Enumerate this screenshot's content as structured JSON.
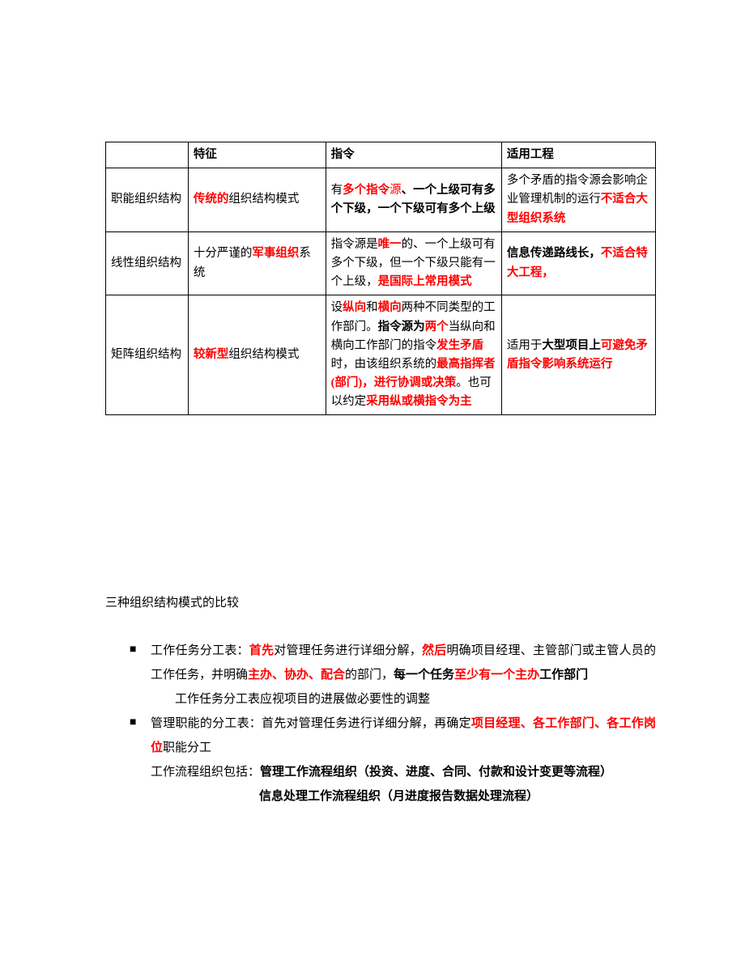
{
  "table": {
    "headers": [
      "",
      "特征",
      "指令",
      "适用工程"
    ],
    "rows": [
      {
        "name": "职能组织结构",
        "feature": [
          {
            "t": "传统的",
            "red": true,
            "bold": true
          },
          {
            "t": "组织结构模式"
          }
        ],
        "directive": [
          {
            "t": "有"
          },
          {
            "t": "多个指令",
            "red": true,
            "bold": true
          },
          {
            "t": "源",
            "red": true,
            "bold": false
          },
          {
            "t": "、一个上级可有多个下级，一个下级可有多个上级",
            "bold": true
          }
        ],
        "application": [
          {
            "t": "多个矛盾的指令源会影响企业管理机制的运行"
          },
          {
            "t": "不适合大型组织系统",
            "red": true,
            "bold": true
          }
        ]
      },
      {
        "name": "线性组织结构",
        "feature": [
          {
            "t": "十分严谨的"
          },
          {
            "t": "军事组织",
            "red": true,
            "bold": true
          },
          {
            "t": "系统"
          }
        ],
        "directive": [
          {
            "t": "指令源是"
          },
          {
            "t": "唯一",
            "red": true,
            "bold": true
          },
          {
            "t": "的、一个上级可有多个下级，但一个下级只能有一个上级，"
          },
          {
            "t": "是国际上常用模式",
            "red": true,
            "bold": true
          }
        ],
        "application": [
          {
            "t": "信息传递路线长，",
            "bold": true
          },
          {
            "t": "不适合特大工程，",
            "red": true,
            "bold": true
          }
        ]
      },
      {
        "name": "矩阵组织结构",
        "feature": [
          {
            "t": "较新型",
            "red": true,
            "bold": true
          },
          {
            "t": "组织结构模式"
          }
        ],
        "directive": [
          {
            "t": "设"
          },
          {
            "t": "纵向",
            "red": true,
            "bold": true
          },
          {
            "t": "和"
          },
          {
            "t": "横向",
            "red": true,
            "bold": true
          },
          {
            "t": "两种不同类型的工作部门。"
          },
          {
            "t": "指令源为",
            "bold": true
          },
          {
            "t": "两个",
            "red": true,
            "bold": true
          },
          {
            "t": "当纵向和横向工作部门的指令"
          },
          {
            "t": "发生矛盾",
            "red": true,
            "bold": true
          },
          {
            "t": "时，由该组织系统的"
          },
          {
            "t": "最高指挥者(部门)，进行协调或决策",
            "red": true,
            "bold": true
          },
          {
            "t": "。也可以约定"
          },
          {
            "t": "采用纵或横指令为主",
            "red": true,
            "bold": true
          }
        ],
        "application": [
          {
            "t": "适用于"
          },
          {
            "t": "大型项目上",
            "bold": true
          },
          {
            "t": "可避免矛盾指令影响系统运行",
            "red": true,
            "bold": true
          }
        ]
      }
    ]
  },
  "caption": "三种组织结构模式的比较",
  "bullets": [
    {
      "marker": "■",
      "segments": [
        {
          "t": "工作任务分工表："
        },
        {
          "t": "首先",
          "red": true,
          "bold": true
        },
        {
          "t": "对管理任务进行详细分解，"
        },
        {
          "t": "然后",
          "red": true,
          "bold": true
        },
        {
          "t": "明确项目经理、主管部门或主管人员的工作任务，并明确"
        },
        {
          "t": "主办、协办、配合",
          "red": true,
          "bold": true
        },
        {
          "t": "的部门，"
        },
        {
          "t": "每一个任务",
          "bold": true
        },
        {
          "t": "至少有一个主办",
          "red": true,
          "bold": true
        },
        {
          "t": "工作部门",
          "bold": true
        }
      ],
      "trailing": "工作任务分工表应视项目的进展做必要性的调整"
    },
    {
      "marker": "■",
      "segments": [
        {
          "t": "管理职能的分工表：首先对管理任务进行详细分解，再确定"
        },
        {
          "t": "项目经理、各工作部门、各工作岗位",
          "red": true,
          "bold": true
        },
        {
          "t": "职能分工"
        }
      ]
    }
  ],
  "footer_lines": [
    [
      {
        "t": "工作流程组织包括："
      },
      {
        "t": "管理工作流程组织（投资、进度、合同、付款和设计变更等流程）",
        "bold": true
      }
    ],
    [
      {
        "t": "信息处理工作流程组织（月进度报告数据处理流程）",
        "bold": true
      }
    ]
  ],
  "colors": {
    "text": "#000000",
    "highlight": "#ff0000",
    "border": "#000000",
    "background": "#ffffff"
  }
}
